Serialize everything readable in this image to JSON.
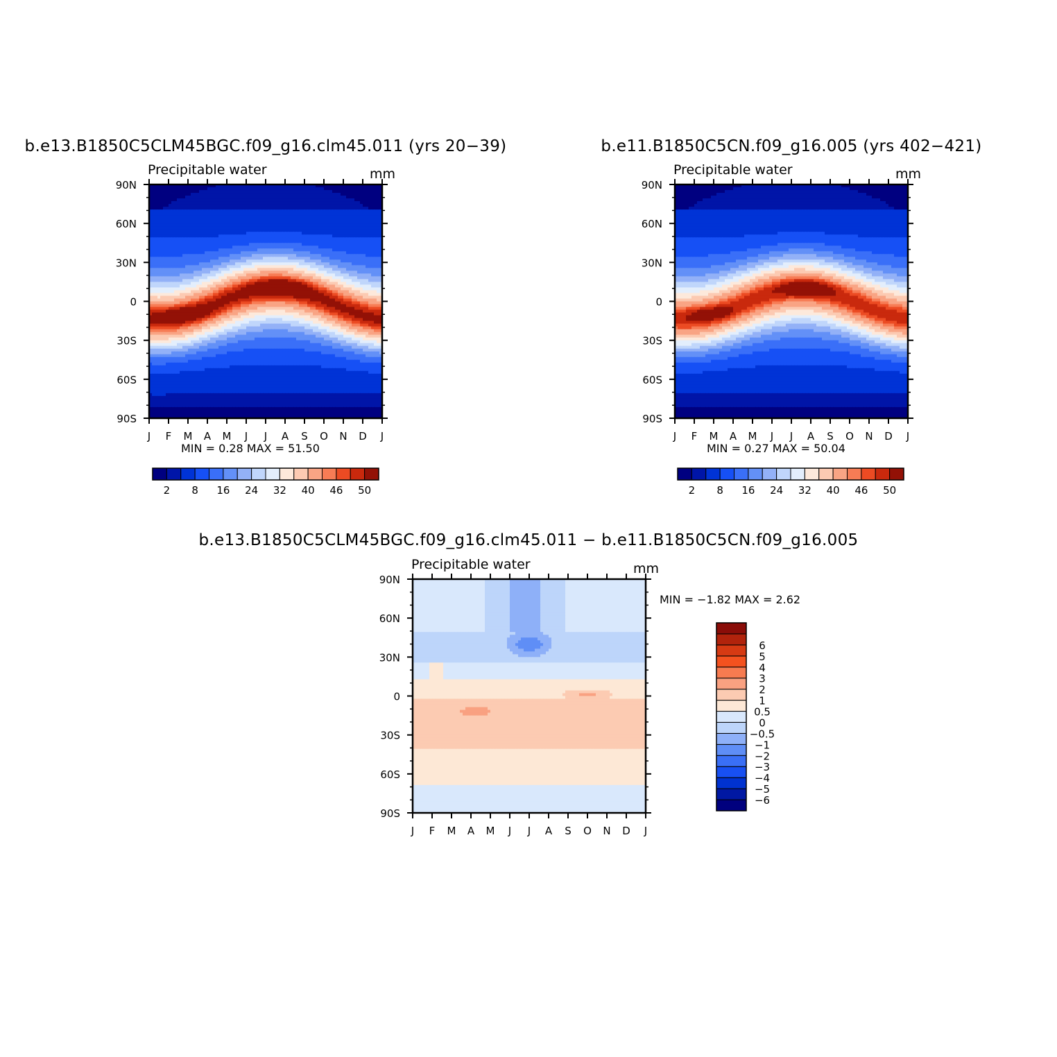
{
  "chart_data": [
    {
      "type": "heatmap",
      "title": "b.e13.B1850C5CLM45BGC.f09_g16.clm45.011 (yrs 20-39)",
      "subtitle": "Precipitable water",
      "units": "mm",
      "x_tick_labels": [
        "J",
        "F",
        "M",
        "A",
        "M",
        "J",
        "J",
        "A",
        "S",
        "O",
        "N",
        "D",
        "J"
      ],
      "y_tick_labels": [
        "90N",
        "60N",
        "30N",
        "0",
        "30S",
        "60S",
        "90S"
      ],
      "ylim": [
        -90,
        90
      ],
      "stats": {
        "min_label": "MIN =",
        "min": "0.28",
        "max_label": "MAX =",
        "max": "51.50"
      },
      "field": {
        "kind": "precip",
        "peak": 51.5,
        "seasonal_shift": 1.0
      },
      "colorbar": {
        "orientation": "horizontal",
        "levels": [
          2,
          4,
          8,
          12,
          16,
          20,
          24,
          28,
          32,
          36,
          40,
          44,
          46,
          48,
          50
        ],
        "tick_labels": [
          "2",
          "8",
          "16",
          "24",
          "32",
          "40",
          "46",
          "50"
        ],
        "colors": [
          "#000080",
          "#0015a8",
          "#0033d6",
          "#1650f5",
          "#3a6ff8",
          "#6390f7",
          "#93b1f7",
          "#c0d6fb",
          "#e3eefc",
          "#fde9db",
          "#fccab2",
          "#f9a484",
          "#f77c55",
          "#ec4b23",
          "#c9290d",
          "#931106"
        ]
      }
    },
    {
      "type": "heatmap",
      "title": "b.e11.B1850C5CN.f09_g16.005 (yrs 402-421)",
      "subtitle": "Precipitable water",
      "units": "mm",
      "x_tick_labels": [
        "J",
        "F",
        "M",
        "A",
        "M",
        "J",
        "J",
        "A",
        "S",
        "O",
        "N",
        "D",
        "J"
      ],
      "y_tick_labels": [
        "90N",
        "60N",
        "30N",
        "0",
        "30S",
        "60S",
        "90S"
      ],
      "ylim": [
        -90,
        90
      ],
      "stats": {
        "min_label": "MIN =",
        "min": "0.27",
        "max_label": "MAX =",
        "max": "50.04"
      },
      "field": {
        "kind": "precip",
        "peak": 50.0,
        "seasonal_shift": 0.95
      },
      "colorbar": {
        "orientation": "horizontal",
        "levels": [
          2,
          4,
          8,
          12,
          16,
          20,
          24,
          28,
          32,
          36,
          40,
          44,
          46,
          48,
          50
        ],
        "tick_labels": [
          "2",
          "8",
          "16",
          "24",
          "32",
          "40",
          "46",
          "50"
        ],
        "colors": [
          "#000080",
          "#0015a8",
          "#0033d6",
          "#1650f5",
          "#3a6ff8",
          "#6390f7",
          "#93b1f7",
          "#c0d6fb",
          "#e3eefc",
          "#fde9db",
          "#fccab2",
          "#f9a484",
          "#f77c55",
          "#ec4b23",
          "#c9290d",
          "#931106"
        ]
      }
    },
    {
      "type": "heatmap",
      "title": "b.e13.B1850C5CLM45BGC.f09_g16.clm45.011 - b.e11.B1850C5CN.f09_g16.005",
      "subtitle": "Precipitable water",
      "units": "mm",
      "x_tick_labels": [
        "J",
        "F",
        "M",
        "A",
        "M",
        "J",
        "J",
        "A",
        "S",
        "O",
        "N",
        "D",
        "J"
      ],
      "y_tick_labels": [
        "90N",
        "60N",
        "30N",
        "0",
        "30S",
        "60S",
        "90S"
      ],
      "ylim": [
        -90,
        90
      ],
      "stats": {
        "min_label": "MIN =",
        "min": "-1.82",
        "max_label": "MAX =",
        "max": "2.62"
      },
      "field": {
        "kind": "diff"
      },
      "colorbar": {
        "orientation": "vertical",
        "levels": [
          -6,
          -5,
          -4,
          -3,
          -2,
          -1,
          -0.5,
          0,
          0.5,
          1,
          2,
          3,
          4,
          5,
          6
        ],
        "tick_labels": [
          "-6",
          "-5",
          "-4",
          "-3",
          "-2",
          "-1",
          "-0.5",
          "0",
          "0.5",
          "1",
          "2",
          "3",
          "4",
          "5",
          "6"
        ],
        "colors": [
          "#00007e",
          "#0018a3",
          "#0032d0",
          "#1850f2",
          "#3a6ff6",
          "#5f8ef6",
          "#8eb0f8",
          "#bdd5fa",
          "#d9e8fc",
          "#fde8d6",
          "#fccbb2",
          "#f9a181",
          "#f77b50",
          "#f4521f",
          "#d63a13",
          "#b1230c",
          "#8a0d08"
        ]
      }
    }
  ]
}
